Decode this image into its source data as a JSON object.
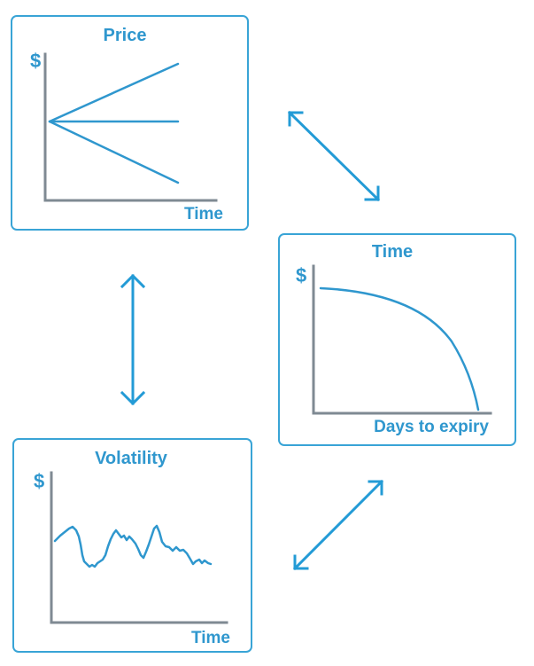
{
  "panels": {
    "price": {
      "title": "Price",
      "y_label": "$",
      "x_label": "Time"
    },
    "time": {
      "title": "Time",
      "y_label": "$",
      "x_label": "Days to expiry"
    },
    "volatility": {
      "title": "Volatility",
      "y_label": "$",
      "x_label": "Time"
    }
  },
  "colors": {
    "accent": "#2f97ce",
    "border": "#39a4d6",
    "axis": "#7f8a93",
    "connector": "#239bd6",
    "background": "#ffffff"
  },
  "connectors": [
    {
      "name": "price-time",
      "icon": "double-headed-diagonal-arrow"
    },
    {
      "name": "price-volatility",
      "icon": "double-headed-vertical-arrow"
    },
    {
      "name": "time-volatility",
      "icon": "double-headed-diagonal-arrow"
    }
  ]
}
